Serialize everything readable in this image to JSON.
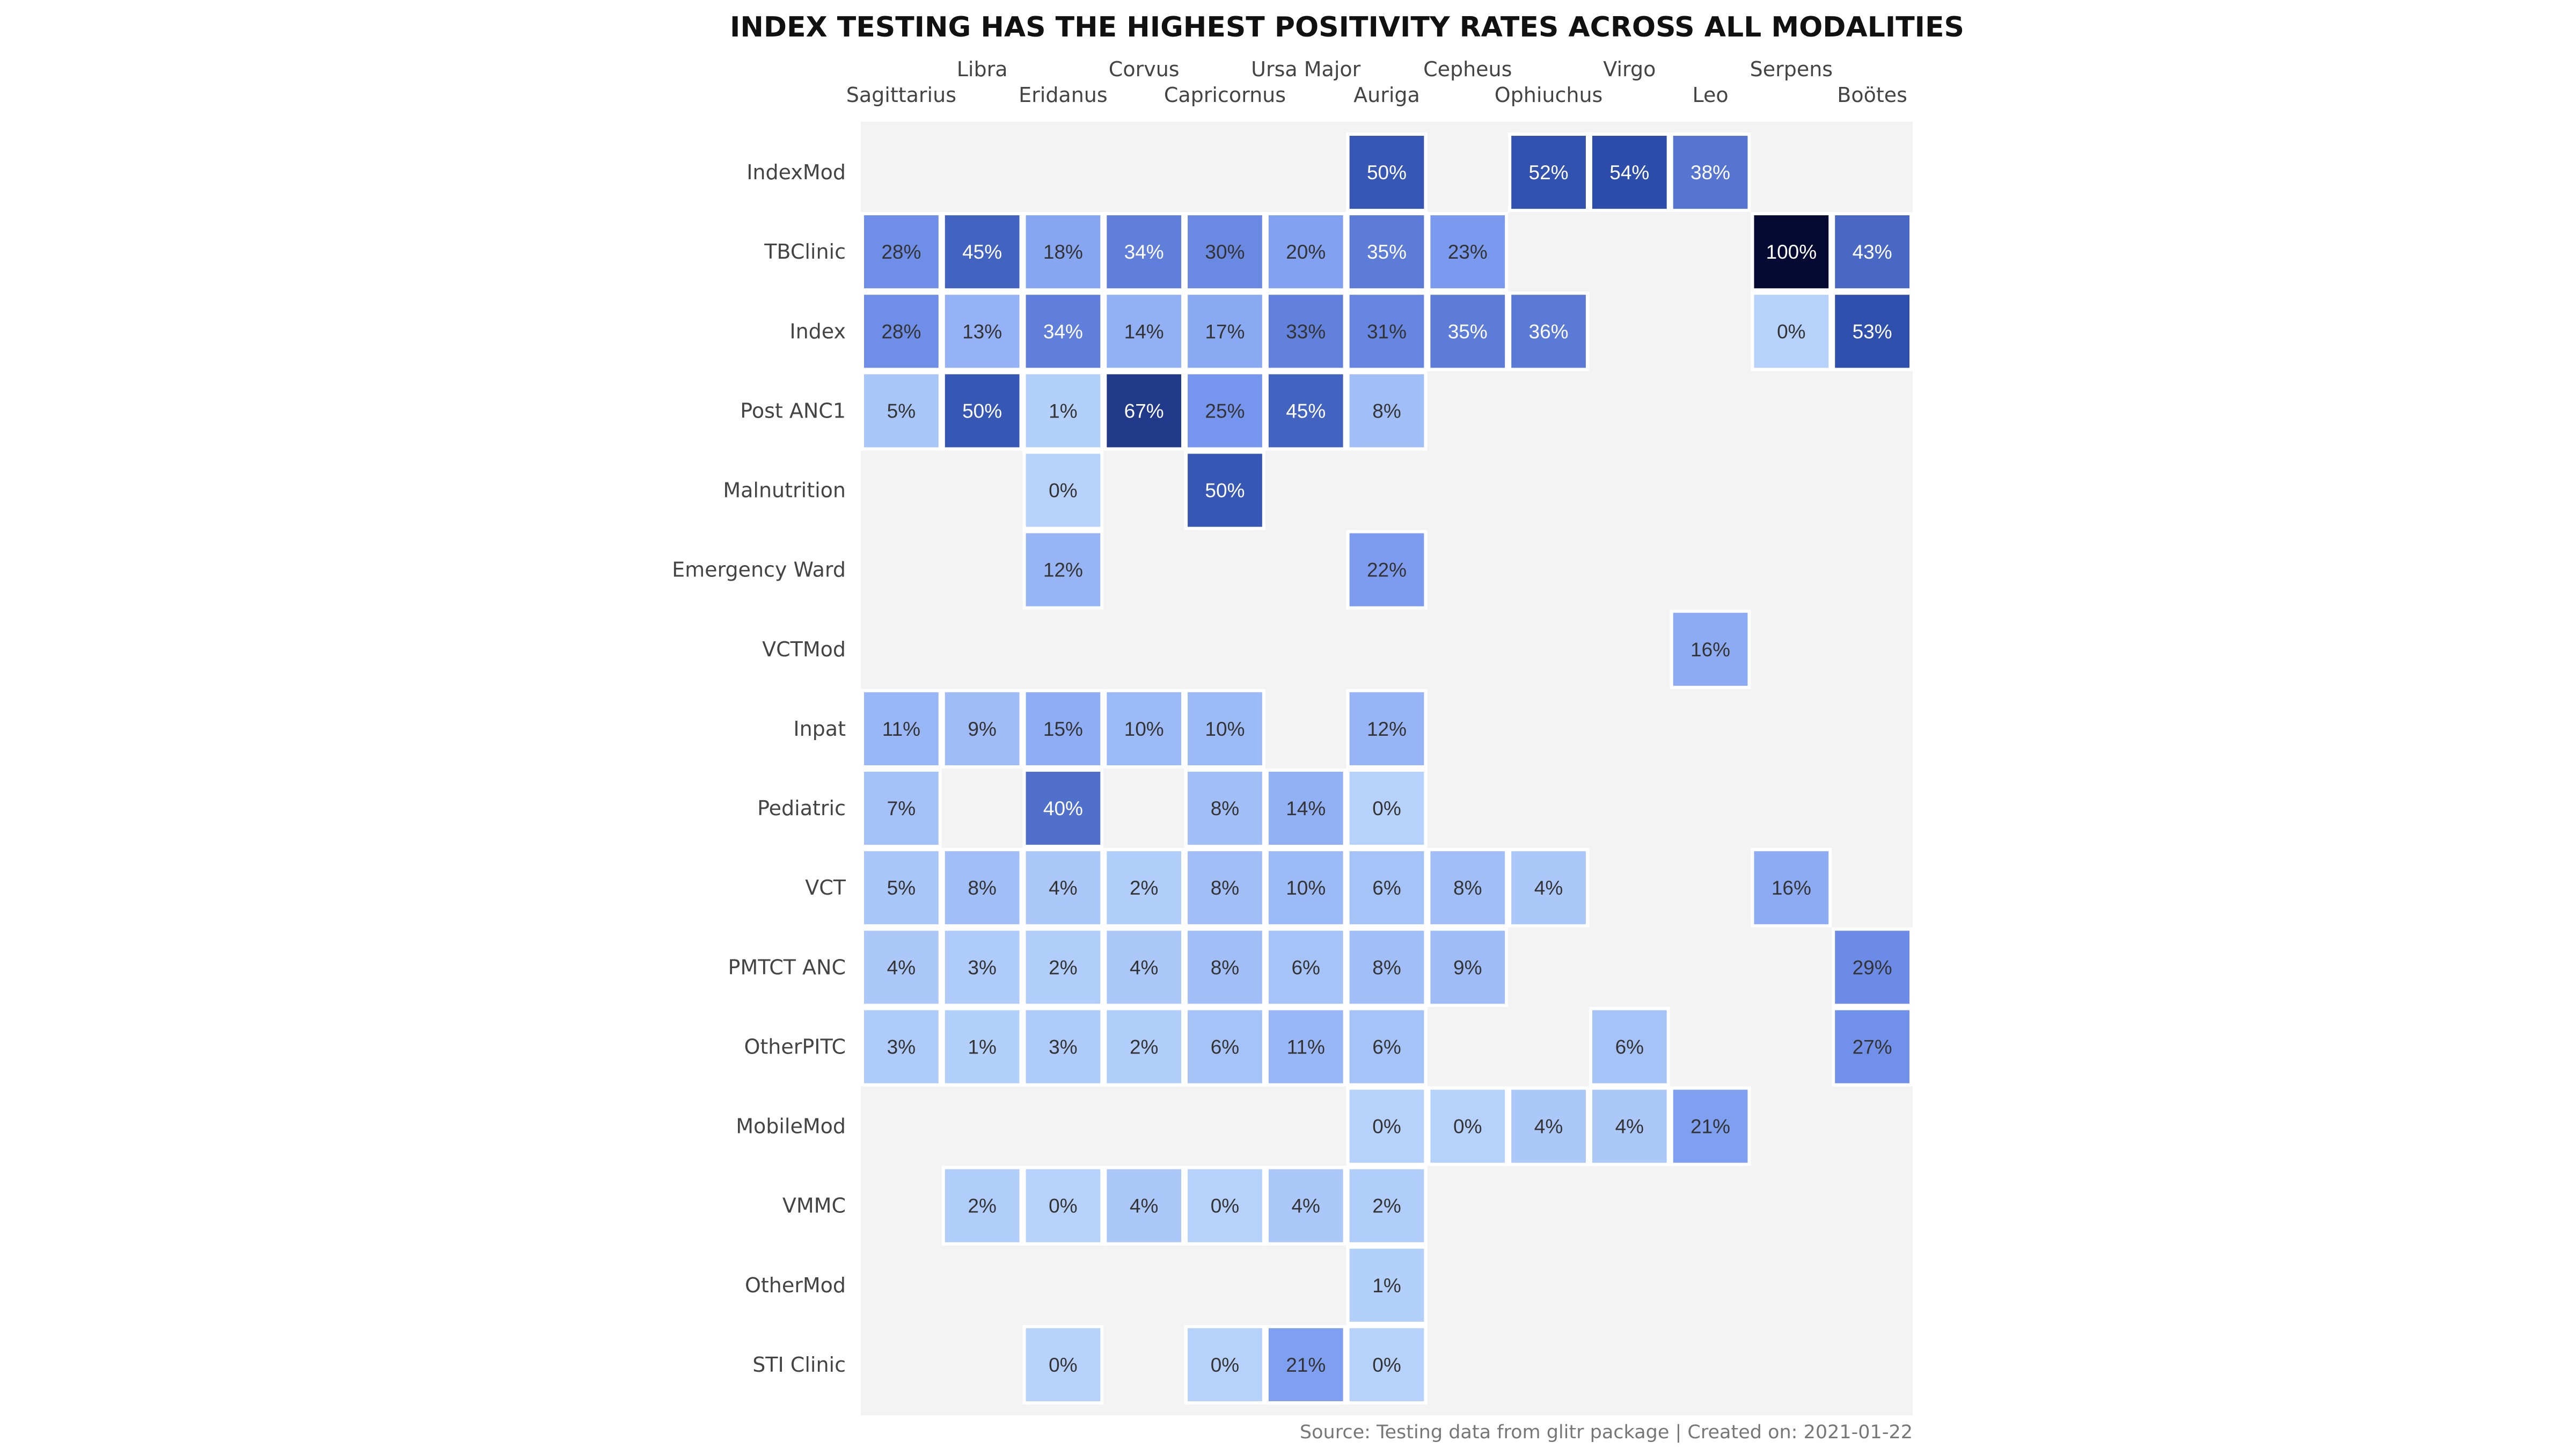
{
  "chart_data": {
    "type": "heatmap",
    "title": "INDEX TESTING HAS THE HIGHEST POSITIVITY RATES ACROSS ALL MODALITIES",
    "caption": "Source: Testing data from glitr package | Created on: 2021-01-22",
    "columns": [
      "Sagittarius",
      "Libra",
      "Eridanus",
      "Corvus",
      "Capricornus",
      "Ursa Major",
      "Auriga",
      "Cepheus",
      "Ophiuchus",
      "Virgo",
      "Leo",
      "Serpens",
      "Boötes"
    ],
    "rows": [
      "IndexMod",
      "TBClinic",
      "Index",
      "Post ANC1",
      "Malnutrition",
      "Emergency Ward",
      "VCTMod",
      "Inpat",
      "Pediatric",
      "VCT",
      "PMTCT ANC",
      "OtherPITC",
      "MobileMod",
      "VMMC",
      "OtherMod",
      "STI Clinic"
    ],
    "value_unit": "%",
    "values": [
      [
        null,
        null,
        null,
        null,
        null,
        null,
        50,
        null,
        52,
        54,
        38,
        null,
        null
      ],
      [
        28,
        45,
        18,
        34,
        30,
        20,
        35,
        23,
        null,
        null,
        null,
        100,
        43
      ],
      [
        28,
        13,
        34,
        14,
        17,
        33,
        31,
        35,
        36,
        null,
        null,
        0,
        53
      ],
      [
        5,
        50,
        1,
        67,
        25,
        45,
        8,
        null,
        null,
        null,
        null,
        null,
        null
      ],
      [
        null,
        null,
        0,
        null,
        50,
        null,
        null,
        null,
        null,
        null,
        null,
        null,
        null
      ],
      [
        null,
        null,
        12,
        null,
        null,
        null,
        22,
        null,
        null,
        null,
        null,
        null,
        null
      ],
      [
        null,
        null,
        null,
        null,
        null,
        null,
        null,
        null,
        null,
        null,
        16,
        null,
        null
      ],
      [
        11,
        9,
        15,
        10,
        10,
        null,
        12,
        null,
        null,
        null,
        null,
        null,
        null
      ],
      [
        7,
        null,
        40,
        null,
        8,
        14,
        0,
        null,
        null,
        null,
        null,
        null,
        null
      ],
      [
        5,
        8,
        4,
        2,
        8,
        10,
        6,
        8,
        4,
        null,
        null,
        16,
        null
      ],
      [
        4,
        3,
        2,
        4,
        8,
        6,
        8,
        9,
        null,
        null,
        null,
        null,
        29
      ],
      [
        3,
        1,
        3,
        2,
        6,
        11,
        6,
        null,
        null,
        6,
        null,
        null,
        27
      ],
      [
        null,
        null,
        null,
        null,
        null,
        null,
        0,
        0,
        4,
        4,
        21,
        null,
        null
      ],
      [
        null,
        2,
        0,
        4,
        0,
        4,
        2,
        null,
        null,
        null,
        null,
        null,
        null
      ],
      [
        null,
        null,
        null,
        null,
        null,
        null,
        1,
        null,
        null,
        null,
        null,
        null,
        null
      ],
      [
        null,
        null,
        0,
        null,
        0,
        21,
        0,
        null,
        null,
        null,
        null,
        null,
        null
      ]
    ],
    "colors": {
      "panel_background": "#f3f3f3",
      "cell_border": "#ffffff",
      "scale_low": "#b6d2fb",
      "scale_mid": "#7595ef",
      "scale_high": "#2a4aa8",
      "scale_max": "#060a33",
      "dark_text": "#333333",
      "light_text": "#ffffff"
    }
  }
}
